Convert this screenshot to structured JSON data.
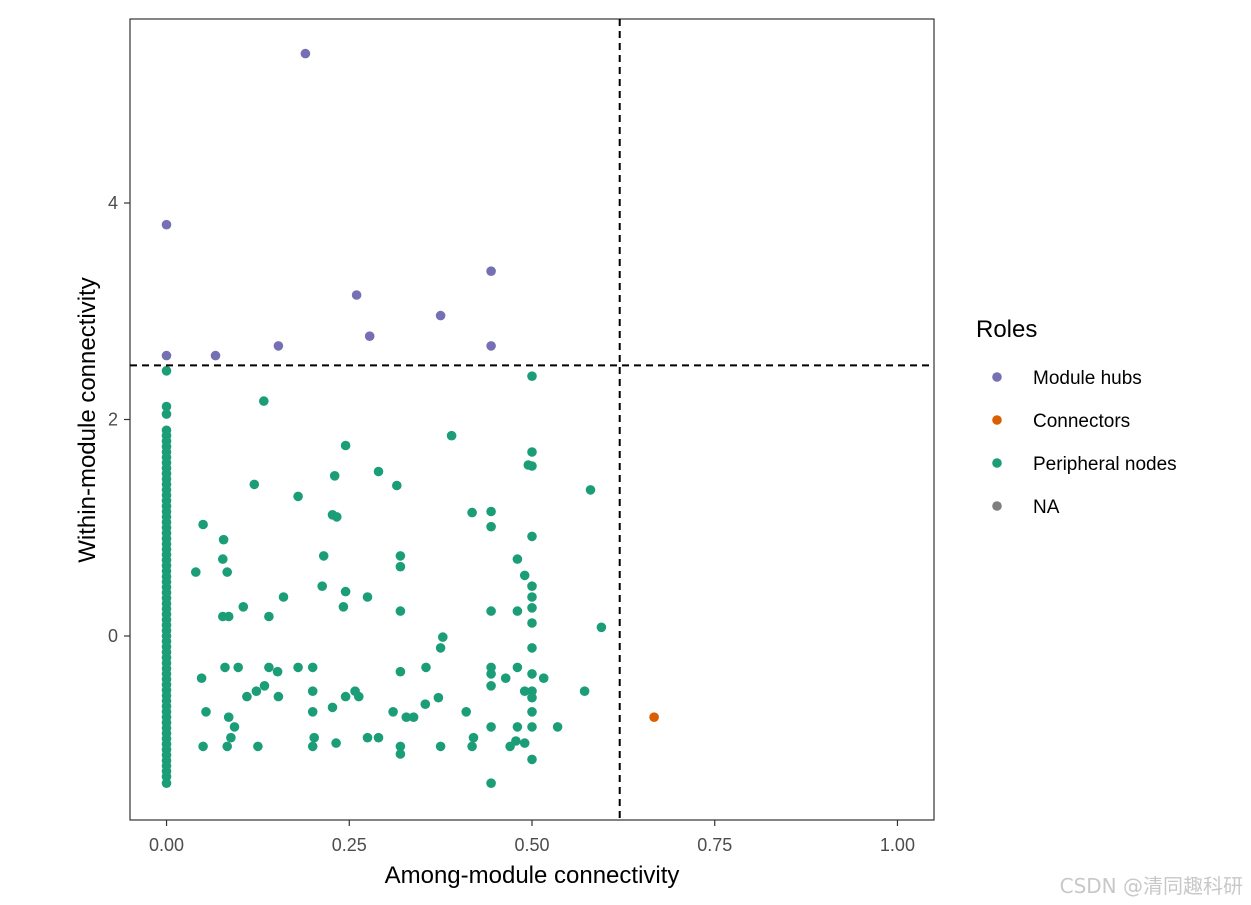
{
  "chart_data": {
    "type": "scatter",
    "title": "",
    "xlabel": "Among-module connectivity",
    "ylabel": "Within-module connectivity",
    "xlim": [
      -0.05,
      1.05
    ],
    "ylim": [
      -1.7,
      5.7
    ],
    "x_ticks": [
      0,
      0.25,
      0.5,
      0.75,
      1
    ],
    "x_tick_labels": [
      "0.00",
      "0.25",
      "0.50",
      "0.75",
      "1.00"
    ],
    "y_ticks": [
      0,
      2,
      4
    ],
    "y_tick_labels": [
      "0",
      "2",
      "4"
    ],
    "thresholds": {
      "x": 0.62,
      "y": 2.5
    },
    "grid": false,
    "legend": {
      "title": "Roles",
      "position": "right",
      "entries": [
        {
          "name": "Module hubs",
          "color": "#7570B3"
        },
        {
          "name": "Connectors",
          "color": "#D95F02"
        },
        {
          "name": "Peripheral nodes",
          "color": "#1B9E77"
        },
        {
          "name": "NA",
          "color": "#7F7F7F"
        }
      ]
    },
    "series": [
      {
        "name": "Module hubs",
        "color": "#7570B3",
        "points": [
          [
            0.19,
            5.38
          ],
          [
            0.0,
            3.8
          ],
          [
            0.444,
            3.37
          ],
          [
            0.26,
            3.15
          ],
          [
            0.375,
            2.96
          ],
          [
            0.278,
            2.77
          ],
          [
            0.153,
            2.68
          ],
          [
            0.444,
            2.68
          ],
          [
            0.0,
            2.59
          ],
          [
            0.067,
            2.59
          ]
        ]
      },
      {
        "name": "Connectors",
        "color": "#D95F02",
        "points": [
          [
            0.667,
            -0.75
          ]
        ]
      },
      {
        "name": "Peripheral nodes",
        "color": "#1B9E77",
        "points": [
          [
            0,
            2.45
          ],
          [
            0,
            2.12
          ],
          [
            0,
            2.05
          ],
          [
            0,
            1.9
          ],
          [
            0,
            1.85
          ],
          [
            0,
            1.8
          ],
          [
            0,
            1.75
          ],
          [
            0,
            1.7
          ],
          [
            0,
            1.65
          ],
          [
            0,
            1.6
          ],
          [
            0,
            1.55
          ],
          [
            0,
            1.5
          ],
          [
            0,
            1.45
          ],
          [
            0,
            1.4
          ],
          [
            0,
            1.35
          ],
          [
            0,
            1.3
          ],
          [
            0,
            1.25
          ],
          [
            0,
            1.2
          ],
          [
            0,
            1.15
          ],
          [
            0,
            1.1
          ],
          [
            0,
            1.05
          ],
          [
            0,
            1.0
          ],
          [
            0,
            0.95
          ],
          [
            0,
            0.9
          ],
          [
            0,
            0.85
          ],
          [
            0,
            0.8
          ],
          [
            0,
            0.75
          ],
          [
            0,
            0.7
          ],
          [
            0,
            0.65
          ],
          [
            0,
            0.6
          ],
          [
            0,
            0.55
          ],
          [
            0,
            0.5
          ],
          [
            0,
            0.45
          ],
          [
            0,
            0.4
          ],
          [
            0,
            0.35
          ],
          [
            0,
            0.3
          ],
          [
            0,
            0.25
          ],
          [
            0,
            0.2
          ],
          [
            0,
            0.15
          ],
          [
            0,
            0.1
          ],
          [
            0,
            0.05
          ],
          [
            0,
            0.0
          ],
          [
            0,
            -0.05
          ],
          [
            0,
            -0.1
          ],
          [
            0,
            -0.15
          ],
          [
            0,
            -0.2
          ],
          [
            0,
            -0.25
          ],
          [
            0,
            -0.3
          ],
          [
            0,
            -0.35
          ],
          [
            0,
            -0.4
          ],
          [
            0,
            -0.45
          ],
          [
            0,
            -0.5
          ],
          [
            0,
            -0.55
          ],
          [
            0,
            -0.6
          ],
          [
            0,
            -0.65
          ],
          [
            0,
            -0.7
          ],
          [
            0,
            -0.75
          ],
          [
            0,
            -0.8
          ],
          [
            0,
            -0.85
          ],
          [
            0,
            -0.9
          ],
          [
            0,
            -0.95
          ],
          [
            0,
            -1.0
          ],
          [
            0,
            -1.05
          ],
          [
            0,
            -1.1
          ],
          [
            0,
            -1.15
          ],
          [
            0,
            -1.2
          ],
          [
            0,
            -1.25
          ],
          [
            0,
            -1.3
          ],
          [
            0,
            -1.36
          ],
          [
            0.5,
            2.4
          ],
          [
            0.133,
            2.17
          ],
          [
            0.39,
            1.85
          ],
          [
            0.245,
            1.76
          ],
          [
            0.5,
            1.7
          ],
          [
            0.495,
            1.58
          ],
          [
            0.5,
            1.57
          ],
          [
            0.29,
            1.52
          ],
          [
            0.23,
            1.48
          ],
          [
            0.12,
            1.4
          ],
          [
            0.315,
            1.39
          ],
          [
            0.58,
            1.35
          ],
          [
            0.18,
            1.29
          ],
          [
            0.418,
            1.14
          ],
          [
            0.444,
            1.15
          ],
          [
            0.227,
            1.12
          ],
          [
            0.233,
            1.1
          ],
          [
            0.05,
            1.03
          ],
          [
            0.444,
            1.01
          ],
          [
            0.5,
            0.92
          ],
          [
            0.078,
            0.89
          ],
          [
            0.215,
            0.74
          ],
          [
            0.32,
            0.74
          ],
          [
            0.077,
            0.71
          ],
          [
            0.48,
            0.71
          ],
          [
            0.32,
            0.64
          ],
          [
            0.04,
            0.59
          ],
          [
            0.083,
            0.59
          ],
          [
            0.49,
            0.56
          ],
          [
            0.213,
            0.46
          ],
          [
            0.5,
            0.46
          ],
          [
            0.245,
            0.41
          ],
          [
            0.16,
            0.36
          ],
          [
            0.275,
            0.36
          ],
          [
            0.5,
            0.36
          ],
          [
            0.105,
            0.27
          ],
          [
            0.242,
            0.27
          ],
          [
            0.5,
            0.26
          ],
          [
            0.32,
            0.23
          ],
          [
            0.444,
            0.23
          ],
          [
            0.48,
            0.23
          ],
          [
            0.077,
            0.18
          ],
          [
            0.085,
            0.18
          ],
          [
            0.14,
            0.18
          ],
          [
            0.5,
            0.12
          ],
          [
            0.595,
            0.08
          ],
          [
            0.378,
            -0.01
          ],
          [
            0.375,
            -0.11
          ],
          [
            0.5,
            -0.11
          ],
          [
            0.08,
            -0.29
          ],
          [
            0.098,
            -0.29
          ],
          [
            0.14,
            -0.29
          ],
          [
            0.18,
            -0.29
          ],
          [
            0.2,
            -0.29
          ],
          [
            0.355,
            -0.29
          ],
          [
            0.444,
            -0.29
          ],
          [
            0.48,
            -0.29
          ],
          [
            0.152,
            -0.33
          ],
          [
            0.32,
            -0.33
          ],
          [
            0.444,
            -0.35
          ],
          [
            0.5,
            -0.35
          ],
          [
            0.048,
            -0.39
          ],
          [
            0.464,
            -0.39
          ],
          [
            0.516,
            -0.39
          ],
          [
            0.444,
            -0.46
          ],
          [
            0.134,
            -0.46
          ],
          [
            0.123,
            -0.51
          ],
          [
            0.2,
            -0.51
          ],
          [
            0.258,
            -0.51
          ],
          [
            0.49,
            -0.51
          ],
          [
            0.5,
            -0.51
          ],
          [
            0.572,
            -0.51
          ],
          [
            0.11,
            -0.56
          ],
          [
            0.153,
            -0.56
          ],
          [
            0.245,
            -0.56
          ],
          [
            0.263,
            -0.56
          ],
          [
            0.372,
            -0.57
          ],
          [
            0.5,
            -0.57
          ],
          [
            0.354,
            -0.63
          ],
          [
            0.054,
            -0.7
          ],
          [
            0.2,
            -0.7
          ],
          [
            0.227,
            -0.66
          ],
          [
            0.31,
            -0.7
          ],
          [
            0.41,
            -0.7
          ],
          [
            0.5,
            -0.7
          ],
          [
            0.085,
            -0.75
          ],
          [
            0.328,
            -0.75
          ],
          [
            0.338,
            -0.75
          ],
          [
            0.093,
            -0.84
          ],
          [
            0.444,
            -0.84
          ],
          [
            0.48,
            -0.84
          ],
          [
            0.5,
            -0.84
          ],
          [
            0.535,
            -0.84
          ],
          [
            0.088,
            -0.94
          ],
          [
            0.202,
            -0.94
          ],
          [
            0.275,
            -0.94
          ],
          [
            0.29,
            -0.94
          ],
          [
            0.42,
            -0.94
          ],
          [
            0.478,
            -0.97
          ],
          [
            0.232,
            -0.99
          ],
          [
            0.49,
            -0.99
          ],
          [
            0.05,
            -1.02
          ],
          [
            0.083,
            -1.02
          ],
          [
            0.125,
            -1.02
          ],
          [
            0.2,
            -1.02
          ],
          [
            0.32,
            -1.02
          ],
          [
            0.375,
            -1.02
          ],
          [
            0.418,
            -1.02
          ],
          [
            0.47,
            -1.02
          ],
          [
            0.32,
            -1.09
          ],
          [
            0.5,
            -1.14
          ],
          [
            0.444,
            -1.36
          ]
        ]
      }
    ]
  },
  "watermark": "CSDN @清同趣科研"
}
